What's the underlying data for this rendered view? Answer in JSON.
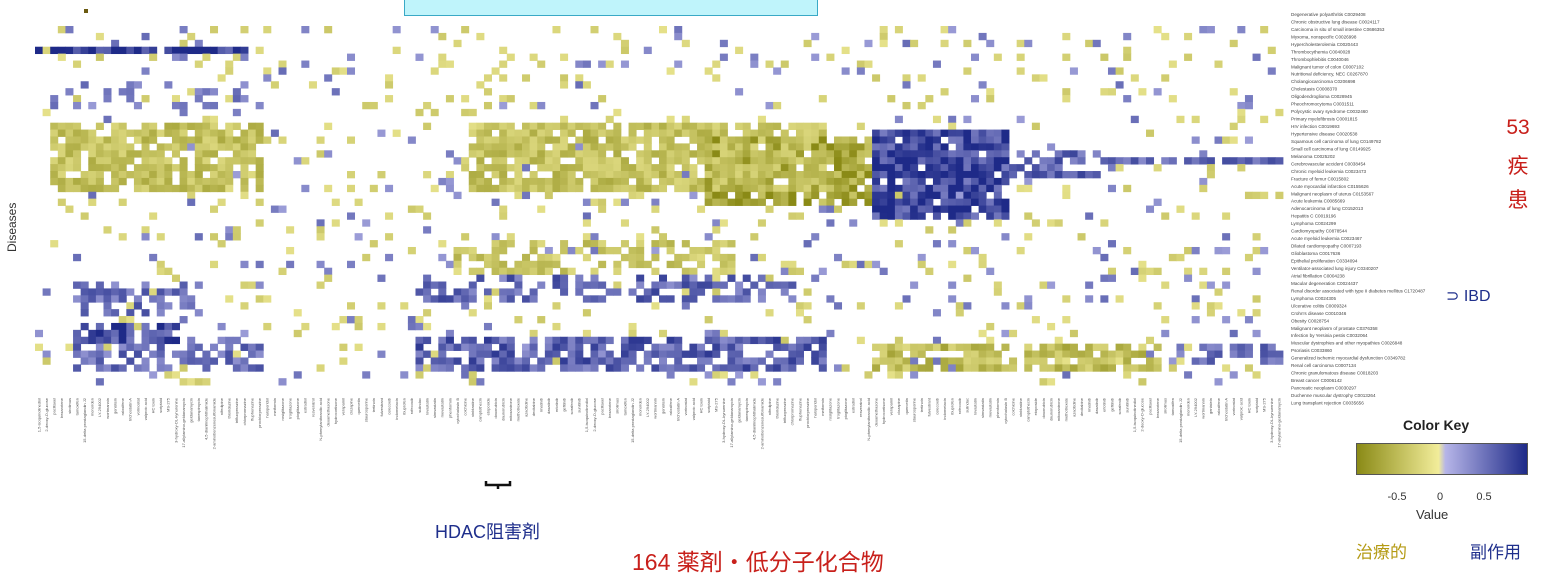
{
  "chart_data": {
    "type": "heatmap",
    "ylabel": "Diseases",
    "xlabel": "164 薬剤・低分子化合物",
    "n_drugs": 164,
    "n_diseases": 53,
    "color_range": [
      -1,
      1
    ],
    "colors": {
      "negative": "#8a8a16",
      "mid_negative": "#f2ed9a",
      "mid_positive": "#b6b5e8",
      "positive": "#1e2a88"
    },
    "diseases": [
      "Degenerative polyarthritis C0029408",
      "Chronic obstructive lung disease C0024117",
      "Carcinoma in situ of small intestine C0686353",
      "Myxoma, nonspecific C0026998",
      "Hypercholesterolemia C0020443",
      "Thrombocythemia C0040028",
      "Thrombophlebitis C0040046",
      "Malignant tumor of colon C0007102",
      "Nutritional deficiency, NEC C0267870",
      "Cholangiocarcinoma C0206698",
      "Cholestasis C0008370",
      "Oligodendroglioma C0028945",
      "Pheochromocytoma C0031511",
      "Polycystic ovary syndrome C0032460",
      "Primary myelofibrosis C0001815",
      "HIV infection C0019693",
      "Hypertensive disease C0020538",
      "Squamous cell carcinoma of lung C0149782",
      "Small cell carcinoma of lung C0149925",
      "Melanoma C0025202",
      "Cerebrovascular accident C0038454",
      "Chronic myeloid leukemia C0023473",
      "Fracture of femur C0015802",
      "Acute myocardial infarction C0155626",
      "Malignant neoplasm of uterus C0153567",
      "Acute leukemia C0085669",
      "Adenocarcinoma of lung C0152013",
      "Hepatitis C C0019196",
      "Lymphoma C0024299",
      "Cardiomyopathy C0878544",
      "Acute myeloid leukemia C0023467",
      "Dilated cardiomyopathy C0007193",
      "Glioblastoma C0017636",
      "Epithelial proliferation C0334094",
      "Ventilator-associated lung injury C0340207",
      "Atrial fibrillation C0004238",
      "Macular degeneration C0024437",
      "Renal disorder associated with type II diabetes mellitus C1720487",
      "Lymphoma C0024305",
      "Ulcerative colitis C0009324",
      "Crohn's disease C0010346",
      "Obesity C0028754",
      "Malignant neoplasm of prostate C0376358",
      "Infection by Yersinia pestis C0032064",
      "Muscular dystrophies and other myopathies C0026848",
      "Psoriasis C0033860",
      "Generalized ischemic myocardial dysfunction C0349782",
      "Renal cell carcinoma C0007134",
      "Chronic granulomatous disease C0018203",
      "Breast cancer C0006142",
      "Pancreatic neoplasm C0030297",
      "Duchenne muscular dystrophy C0013264",
      "Lung transplant rejection C0035656"
    ],
    "drugs": [
      "1,5-isoquinolinediol",
      "2-deoxy-D-glucose",
      "paclitaxel",
      "bexarotene",
      "sirolimus",
      "tamoxifen",
      "15-delta prostaglandin J2",
      "monorden",
      "LY-294002",
      "wortmannin",
      "genistein",
      "raloxifene",
      "trichostatin A",
      "vorinostat",
      "valproic acid",
      "HC toxin",
      "scriptaid",
      "MS-275",
      "3-hydroxy-DL-kynurenine",
      "17-allylamino-geldanamycin",
      "geldanamycin",
      "tanespimycin",
      "4,5-dianilinophthalimide",
      "2-aminobenzenesulfonamide",
      "nifedipine",
      "thioridazine",
      "trifluoperazine",
      "chlorpromazine",
      "fluphenazine",
      "prochlorperazine",
      "haloperidol",
      "metformin",
      "rosiglitazone",
      "troglitazone",
      "pioglitazone",
      "estradiol",
      "resveratrol",
      "N-phenylanthranilic acid",
      "dexamethasone",
      "hydrocortisone",
      "verapamil",
      "clozapine",
      "quercetin",
      "staurosporine",
      "tretinoin",
      "fulvestrant",
      "celecoxib",
      "indometacin",
      "ibuprofen",
      "rofecoxib",
      "sulindac",
      "lovastatin",
      "simvastatin",
      "mevastatin",
      "phenformin",
      "cytochalasin B",
      "colchicine",
      "vinblastine",
      "camptothecin",
      "etoposide",
      "doxorubicin",
      "daunorubicin",
      "mitoxantrone",
      "methotrexate",
      "azacitidine",
      "decitabine",
      "imatinib",
      "dasatinib",
      "erlotinib",
      "gefitinib",
      "sorafenib",
      "sunitinib"
    ],
    "annotations": {
      "ibd": "IBD",
      "hdac": "HDAC阻害剤",
      "disease_count_num": "53",
      "disease_count_char1": "疾",
      "disease_count_char2": "患"
    },
    "color_key": {
      "title": "Color Key",
      "ticks": [
        "-0.5",
        "0",
        "0.5"
      ],
      "value_label": "Value"
    },
    "legend": {
      "therapeutic": "治療的",
      "side_effect": "副作用"
    }
  }
}
